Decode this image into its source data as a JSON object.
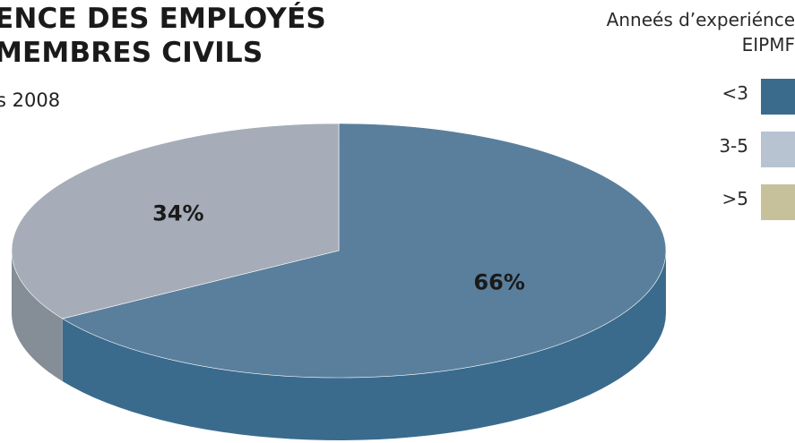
{
  "title": {
    "line1": "ENCE DES EMPLOYÉS",
    "line2": "MEMBRES CIVILS"
  },
  "subtitle": "s 2008",
  "legend": {
    "title_line1": "Anneés d’experiénce",
    "title_line2": "EIPMF",
    "items": [
      {
        "label": "<3",
        "color": "#3a6b8d"
      },
      {
        "label": "3-5",
        "color": "#b7c3d1"
      },
      {
        "label": ">5",
        "color": "#c6c19b"
      }
    ]
  },
  "chart_data": {
    "type": "pie",
    "categories": [
      "<3",
      "3-5",
      ">5"
    ],
    "values": [
      66,
      34,
      0
    ],
    "data_labels": [
      "66%",
      "34%",
      ""
    ],
    "colors": {
      "<3": {
        "top": "#5a7f9c",
        "side": "#3a6b8d"
      },
      "3-5": {
        "top": "#a6adb8",
        "side": "#858d97"
      },
      ">5": {
        "top": "#c6c19b",
        "side": "#a8a47f"
      }
    },
    "legend_position": "top-right"
  }
}
